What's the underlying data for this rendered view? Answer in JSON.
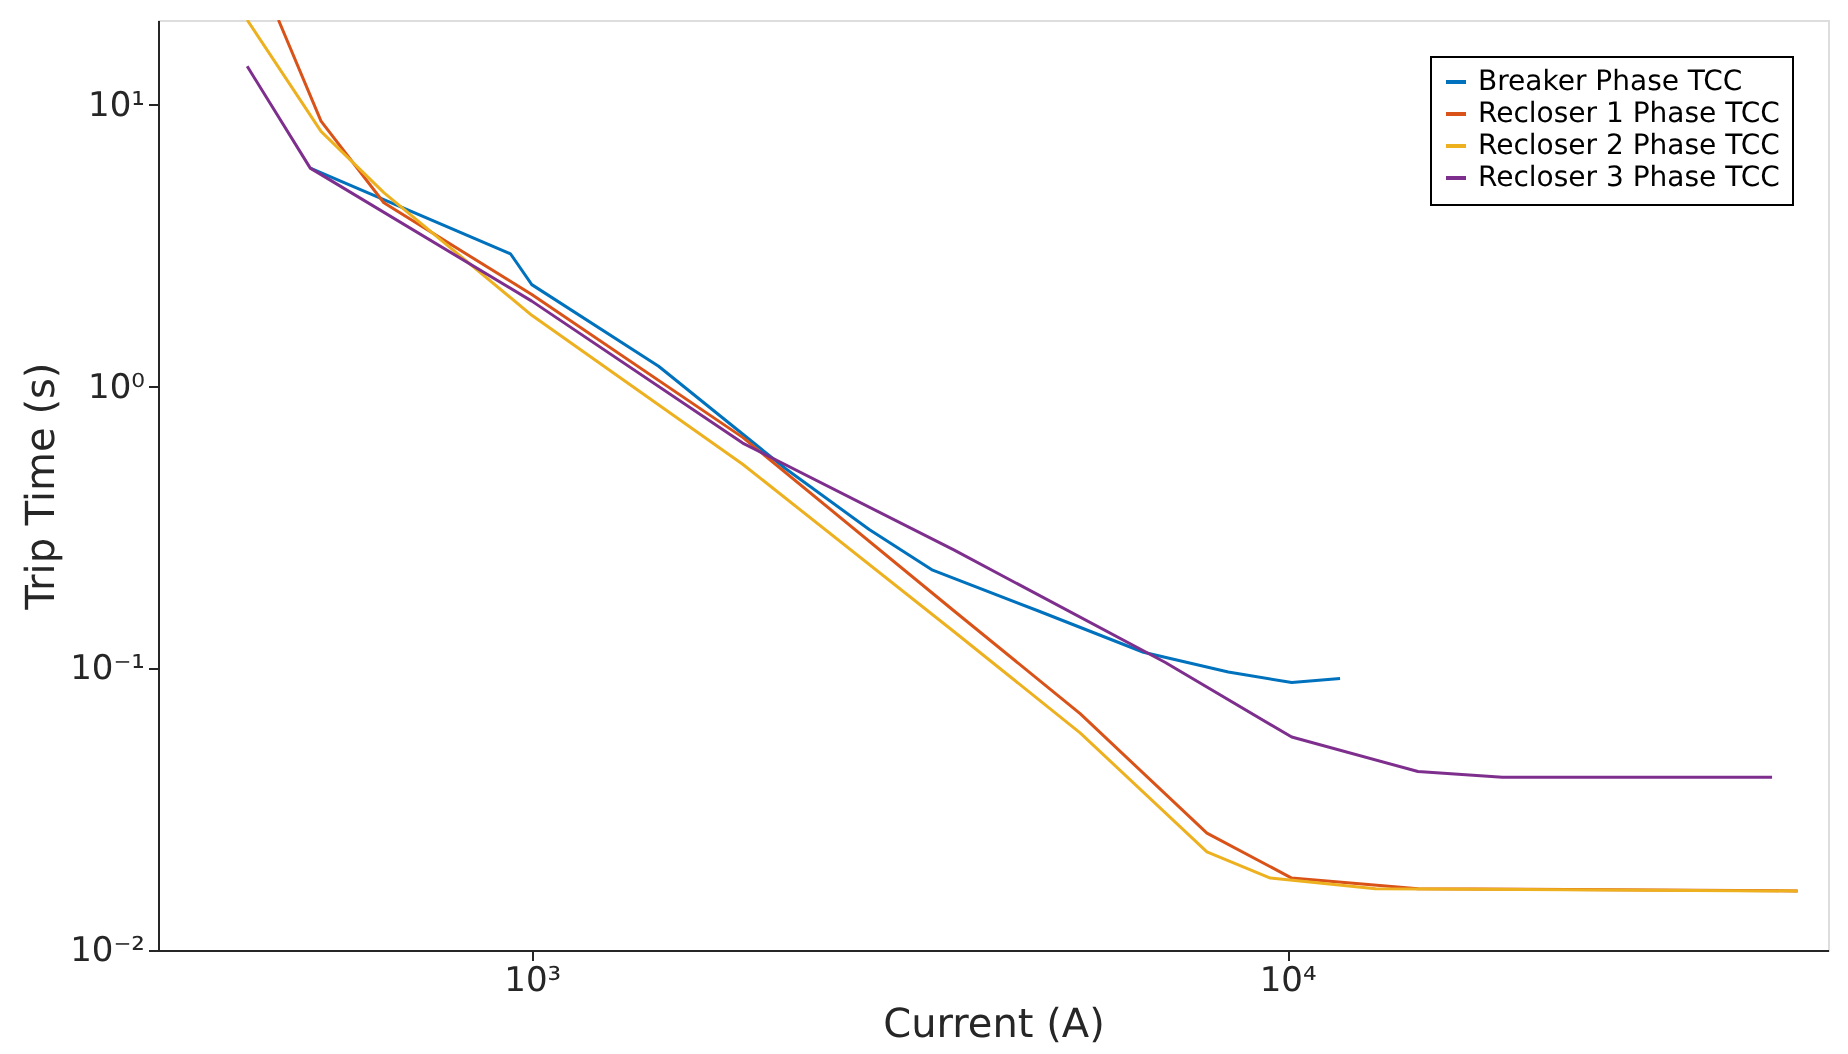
{
  "chart_data": {
    "type": "line",
    "xlabel": "Current (A)",
    "ylabel": "Trip Time (s)",
    "log": "xy",
    "grid": false,
    "legend": "top right",
    "marker": "none",
    "line_style": "solid",
    "xlim": [
      320,
      52000
    ],
    "ylim": [
      0.01,
      20
    ],
    "xticks": [
      {
        "value": 1000,
        "label": "10³"
      },
      {
        "value": 10000,
        "label": "10⁴"
      }
    ],
    "yticks": [
      {
        "value": 0.01,
        "label": "10⁻²"
      },
      {
        "value": 0.1,
        "label": "10⁻¹"
      },
      {
        "value": 1,
        "label": "10⁰"
      },
      {
        "value": 10,
        "label": "10¹"
      }
    ],
    "series": [
      {
        "name": "Breaker Phase TCC",
        "color": "#0072bd",
        "x": [
          509,
          937,
          1000,
          1472,
          2164,
          2797,
          3394,
          4677,
          6453,
          8357,
          10140,
          11750
        ],
        "values": [
          5.96,
          2.96,
          2.3,
          1.18,
          0.513,
          0.311,
          0.223,
          0.16,
          0.114,
          0.097,
          0.089,
          0.092
        ]
      },
      {
        "name": "Recloser 1 Phase TCC",
        "color": "#d95319",
        "x": [
          462,
          526,
          637,
          1000,
          1902,
          3620,
          5320,
          7830,
          10140,
          14900,
          47400
        ],
        "values": [
          20,
          8.75,
          4.49,
          2.12,
          0.66,
          0.16,
          0.069,
          0.026,
          0.018,
          0.0165,
          0.0162
        ]
      },
      {
        "name": "Recloser 2 Phase TCC",
        "color": "#edb120",
        "x": [
          420,
          526,
          637,
          1000,
          1902,
          3620,
          5320,
          7830,
          9500,
          13090,
          47400
        ],
        "values": [
          20,
          8.05,
          4.88,
          1.79,
          0.53,
          0.135,
          0.059,
          0.0223,
          0.018,
          0.0165,
          0.0162
        ]
      },
      {
        "name": "Recloser 3 Phase TCC",
        "color": "#7e2f8e",
        "x": [
          420,
          509,
          1000,
          1902,
          3620,
          6890,
          10140,
          14900,
          19270,
          43850
        ],
        "values": [
          13.7,
          5.96,
          2.01,
          0.63,
          0.263,
          0.105,
          0.057,
          0.043,
          0.041,
          0.041
        ]
      }
    ]
  }
}
